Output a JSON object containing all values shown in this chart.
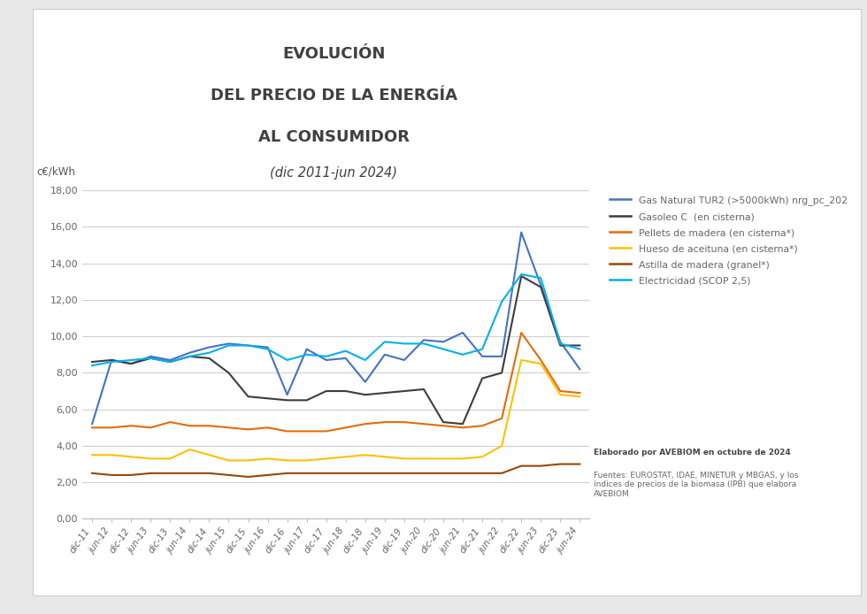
{
  "title_line1": "EVOLUCIÓN",
  "title_line2": "DEL PRECIO DE LA ENERGÍA",
  "title_line3": "AL CONSUMIDOR",
  "title_italic": "(dic 2011-jun 2024)",
  "ylabel": "c€/kWh",
  "ylim": [
    0,
    18
  ],
  "yticks": [
    0,
    2,
    4,
    6,
    8,
    10,
    12,
    14,
    16,
    18
  ],
  "ytick_labels": [
    "0,00",
    "2,00",
    "4,00",
    "6,00",
    "8,00",
    "10,00",
    "12,00",
    "14,00",
    "16,00",
    "18,00"
  ],
  "x_labels": [
    "dic-11",
    "jun-12",
    "dic-12",
    "jun-13",
    "dic-13",
    "jun-14",
    "dic-14",
    "jun-15",
    "dic-15",
    "jun-16",
    "dic-16",
    "jun-17",
    "dic-17",
    "jun-18",
    "dic-18",
    "jun-19",
    "dic-19",
    "jun-20",
    "dic-20",
    "jun-21",
    "dic-21",
    "jun-22",
    "dic-22",
    "jun-23",
    "dic-23",
    "jun-24"
  ],
  "series": {
    "gas_natural": {
      "label": "Gas Natural TUR2 (>5000kWh) nrg_pc_202",
      "color": "#4472C4",
      "linewidth": 1.5,
      "values": [
        5.2,
        8.7,
        8.5,
        8.9,
        8.7,
        9.1,
        9.4,
        9.6,
        9.5,
        9.4,
        6.8,
        9.3,
        8.7,
        8.8,
        7.5,
        9.0,
        8.7,
        9.8,
        9.7,
        10.2,
        8.9,
        8.9,
        15.7,
        12.8,
        9.7,
        8.2
      ]
    },
    "gasoleo": {
      "label": "Gasoleo C  (en cisterna)",
      "color": "#3D3D3D",
      "linewidth": 1.5,
      "values": [
        8.6,
        8.7,
        8.5,
        8.8,
        8.6,
        8.9,
        8.8,
        8.0,
        6.7,
        6.6,
        6.5,
        6.5,
        7.0,
        7.0,
        6.8,
        6.9,
        7.0,
        7.1,
        5.3,
        5.2,
        7.7,
        8.0,
        13.3,
        12.7,
        9.5,
        9.5
      ]
    },
    "pellets": {
      "label": "Pellets de madera (en cisterna*)",
      "color": "#E36C09",
      "linewidth": 1.5,
      "values": [
        5.0,
        5.0,
        5.1,
        5.0,
        5.3,
        5.1,
        5.1,
        5.0,
        4.9,
        5.0,
        4.8,
        4.8,
        4.8,
        5.0,
        5.2,
        5.3,
        5.3,
        5.2,
        5.1,
        5.0,
        5.1,
        5.5,
        10.2,
        8.7,
        7.0,
        6.9
      ]
    },
    "hueso": {
      "label": "Hueso de aceituna (en cisterna*)",
      "color": "#FFC000",
      "linewidth": 1.5,
      "values": [
        3.5,
        3.5,
        3.4,
        3.3,
        3.3,
        3.8,
        3.5,
        3.2,
        3.2,
        3.3,
        3.2,
        3.2,
        3.3,
        3.4,
        3.5,
        3.4,
        3.3,
        3.3,
        3.3,
        3.3,
        3.4,
        4.0,
        8.7,
        8.5,
        6.8,
        6.7
      ]
    },
    "astilla": {
      "label": "Astilla de madera (granel*)",
      "color": "#974706",
      "linewidth": 1.5,
      "values": [
        2.5,
        2.4,
        2.4,
        2.5,
        2.5,
        2.5,
        2.5,
        2.4,
        2.3,
        2.4,
        2.5,
        2.5,
        2.5,
        2.5,
        2.5,
        2.5,
        2.5,
        2.5,
        2.5,
        2.5,
        2.5,
        2.5,
        2.9,
        2.9,
        3.0,
        3.0
      ]
    },
    "electricidad": {
      "label": "Electricidad (SCOP 2,5)",
      "color": "#00B0F0",
      "linewidth": 1.5,
      "values": [
        8.4,
        8.6,
        8.7,
        8.8,
        8.6,
        8.9,
        9.1,
        9.5,
        9.5,
        9.3,
        8.7,
        9.0,
        8.9,
        9.2,
        8.7,
        9.7,
        9.6,
        9.6,
        9.3,
        9.0,
        9.3,
        11.9,
        13.4,
        13.2,
        9.6,
        9.3
      ]
    }
  },
  "plot_bg_color": "#ffffff",
  "grid_color": "#d0d0d0",
  "annotation_bold": "Elaborado por AVEBIOM en octubre de 2024",
  "annotation_normal": "Fuentes: EUROSTAT, IDAE, MINETUR y MBGAS, y los\níndices de precios de la biomasa (IPB) que elabora\nAVEBIOM",
  "figure_bg": "#e8e8e8",
  "card_bg": "#ffffff",
  "card_edge": "#cccccc",
  "title_color": "#404040",
  "tick_color": "#666666",
  "ylabel_color": "#555555"
}
